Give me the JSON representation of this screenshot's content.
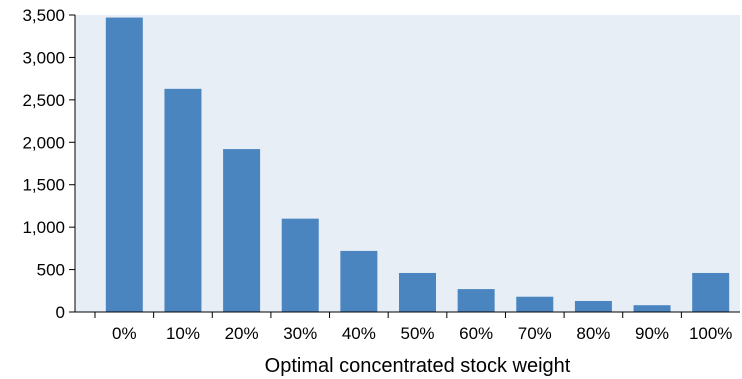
{
  "chart_data": {
    "type": "bar",
    "title": "",
    "xlabel": "Optimal concentrated stock weight",
    "ylabel": "",
    "categories": [
      "0%",
      "10%",
      "20%",
      "30%",
      "40%",
      "50%",
      "60%",
      "70%",
      "80%",
      "90%",
      "100%"
    ],
    "values": [
      3470,
      2630,
      1920,
      1100,
      720,
      460,
      270,
      180,
      130,
      80,
      460
    ],
    "ylim": [
      0,
      3500
    ],
    "yticks": [
      0,
      500,
      1000,
      1500,
      2000,
      2500,
      3000,
      3500
    ],
    "ytick_labels": [
      "0",
      "500",
      "1,000",
      "1,500",
      "2,000",
      "2,500",
      "3,000",
      "3,500"
    ],
    "grid": false,
    "legend": "none",
    "colors": {
      "plot_background": "#e8eef6",
      "bar": "#4a85bf",
      "axis": "#000000"
    }
  }
}
